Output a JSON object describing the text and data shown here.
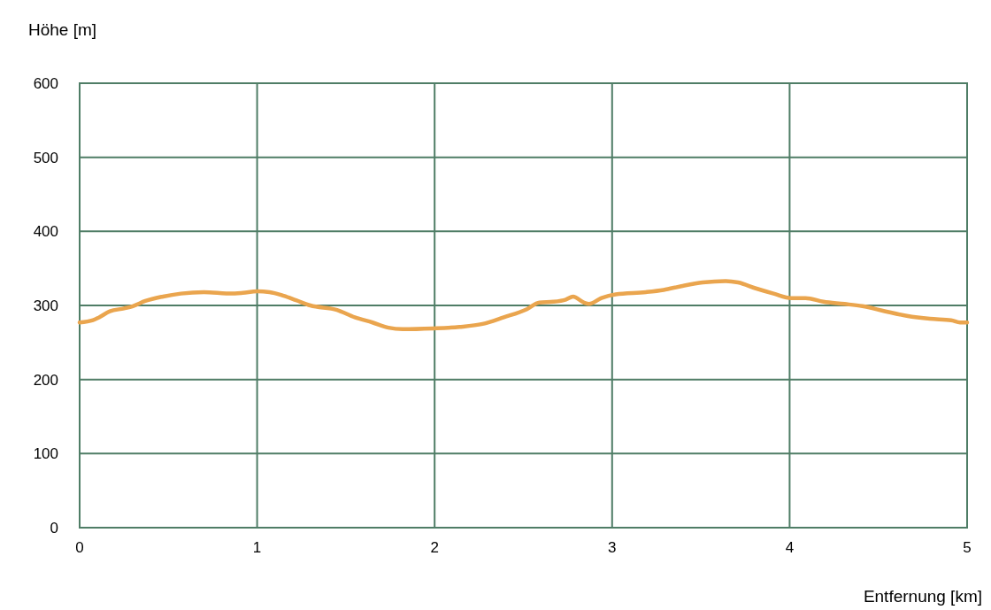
{
  "chart_data": {
    "type": "line",
    "xlabel": "Entfernung [km]",
    "ylabel": "Höhe [m]",
    "xlim": [
      0,
      5
    ],
    "xticks": [
      0,
      1,
      2,
      3,
      4,
      5
    ],
    "ylim": [
      0,
      600
    ],
    "yticks": [
      0,
      100,
      200,
      300,
      400,
      500,
      600
    ],
    "grid": true,
    "series": [
      {
        "color": "#eaa54e",
        "x": [
          0,
          0.075,
          0.11,
          0.17,
          0.25,
          0.3,
          0.37,
          0.47,
          0.57,
          0.7,
          0.85,
          0.92,
          1.0,
          1.07,
          1.15,
          1.22,
          1.3,
          1.45,
          1.55,
          1.65,
          1.74,
          1.82,
          1.99,
          2.14,
          2.27,
          2.39,
          2.52,
          2.59,
          2.67,
          2.74,
          2.78,
          2.84,
          2.87,
          2.94,
          3.02,
          3.19,
          3.29,
          3.39,
          3.51,
          3.64,
          3.71,
          3.81,
          3.91,
          4.01,
          4.09,
          4.19,
          4.31,
          4.41,
          4.54,
          4.66,
          4.79,
          4.91,
          4.96,
          5.0
        ],
        "values": [
          277,
          280,
          284,
          292,
          296,
          299,
          306,
          312,
          316,
          318,
          316,
          317,
          319,
          318,
          313,
          307,
          300,
          294,
          284,
          277,
          270,
          268,
          269,
          271,
          275,
          284,
          295,
          304,
          305,
          308,
          312,
          304,
          302,
          310,
          315,
          318,
          321,
          326,
          331,
          333,
          331,
          323,
          316,
          310,
          310,
          305,
          302,
          299,
          292,
          286,
          282,
          280,
          277,
          277
        ]
      }
    ]
  }
}
